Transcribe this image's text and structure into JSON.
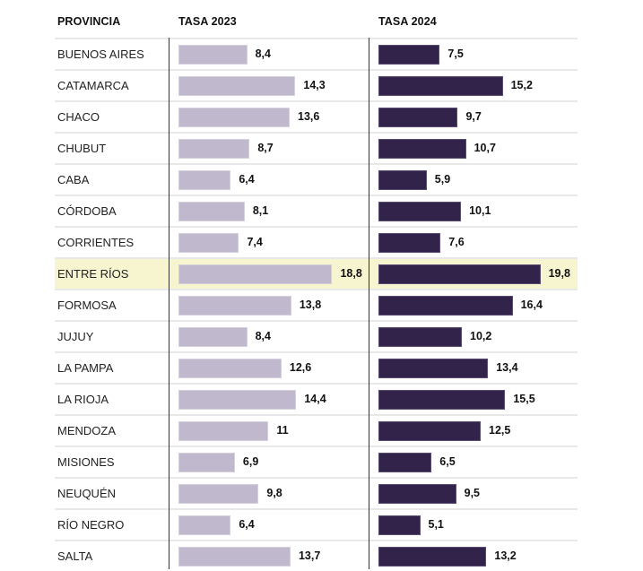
{
  "headers": {
    "province": "PROVINCIA",
    "col2023": "TASA 2023",
    "col2024": "TASA 2024"
  },
  "highlight_row": "ENTRE RÍOS",
  "colors": {
    "bar_2023": "#c0b8cc",
    "bar_2024": "#31234a",
    "highlight": "#f7f5cf"
  },
  "chart_data": {
    "type": "bar",
    "orientation": "horizontal",
    "title": "",
    "xlabel": "",
    "ylabel": "PROVINCIA",
    "categories": [
      "BUENOS AIRES",
      "CATAMARCA",
      "CHACO",
      "CHUBUT",
      "CABA",
      "CÓRDOBA",
      "CORRIENTES",
      "ENTRE RÍOS",
      "FORMOSA",
      "JUJUY",
      "LA PAMPA",
      "LA RIOJA",
      "MENDOZA",
      "MISIONES",
      "NEUQUÉN",
      "RÍO NEGRO",
      "SALTA"
    ],
    "series": [
      {
        "name": "TASA 2023",
        "values": [
          8.4,
          14.3,
          13.6,
          8.7,
          6.4,
          8.1,
          7.4,
          18.8,
          13.8,
          8.4,
          12.6,
          14.4,
          11,
          6.9,
          9.8,
          6.4,
          13.7
        ],
        "labels": [
          "8,4",
          "14,3",
          "13,6",
          "8,7",
          "6,4",
          "8,1",
          "7,4",
          "18,8",
          "13,8",
          "8,4",
          "12,6",
          "14,4",
          "11",
          "6,9",
          "9,8",
          "6,4",
          "13,7"
        ]
      },
      {
        "name": "TASA 2024",
        "values": [
          7.5,
          15.2,
          9.7,
          10.7,
          5.9,
          10.1,
          7.6,
          19.8,
          16.4,
          10.2,
          13.4,
          15.5,
          12.5,
          6.5,
          9.5,
          5.1,
          13.2
        ],
        "labels": [
          "7,5",
          "15,2",
          "9,7",
          "10,7",
          "5,9",
          "10,1",
          "7,6",
          "19,8",
          "16,4",
          "10,2",
          "13,4",
          "15,5",
          "12,5",
          "6,5",
          "9,5",
          "5,1",
          "13,2"
        ]
      }
    ],
    "xlim": [
      0,
      20
    ],
    "grid": false,
    "legend": "none"
  }
}
